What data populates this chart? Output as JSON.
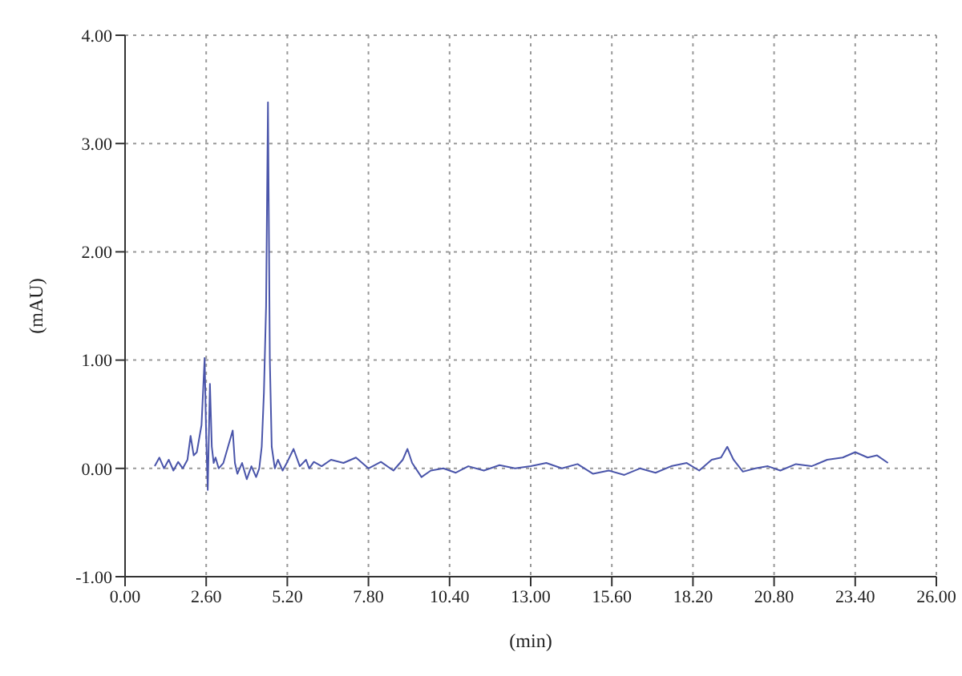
{
  "chart_data": {
    "type": "line",
    "xlabel": "(min)",
    "ylabel": "(mAU)",
    "xlim": [
      0,
      26
    ],
    "ylim": [
      -1,
      4
    ],
    "xticks": [
      {
        "value": 0,
        "label": "0.00"
      },
      {
        "value": 2.6,
        "label": "2.60"
      },
      {
        "value": 5.2,
        "label": "5.20"
      },
      {
        "value": 7.8,
        "label": "7.80"
      },
      {
        "value": 10.4,
        "label": "10.40"
      },
      {
        "value": 13,
        "label": "13.00"
      },
      {
        "value": 15.6,
        "label": "15.60"
      },
      {
        "value": 18.2,
        "label": "18.20"
      },
      {
        "value": 20.8,
        "label": "20.80"
      },
      {
        "value": 23.4,
        "label": "23.40"
      },
      {
        "value": 26,
        "label": "26.00"
      }
    ],
    "yticks": [
      {
        "value": -1,
        "label": "-1.00"
      },
      {
        "value": 0,
        "label": "0.00"
      },
      {
        "value": 1,
        "label": "1.00"
      },
      {
        "value": 2,
        "label": "2.00"
      },
      {
        "value": 3,
        "label": "3.00"
      },
      {
        "value": 4,
        "label": "4.00"
      }
    ],
    "grid": true,
    "marker": "none",
    "line_style": "solid",
    "series": [
      {
        "color": "#4a55aa",
        "x": [
          0.95,
          1.1,
          1.25,
          1.4,
          1.55,
          1.7,
          1.85,
          2.0,
          2.1,
          2.2,
          2.3,
          2.45,
          2.55,
          2.6,
          2.65,
          2.72,
          2.78,
          2.84,
          2.9,
          3.0,
          3.15,
          3.3,
          3.45,
          3.52,
          3.6,
          3.75,
          3.9,
          4.05,
          4.2,
          4.3,
          4.38,
          4.45,
          4.52,
          4.58,
          4.64,
          4.7,
          4.8,
          4.9,
          5.05,
          5.2,
          5.4,
          5.6,
          5.8,
          5.9,
          6.05,
          6.3,
          6.6,
          7.0,
          7.4,
          7.8,
          8.2,
          8.6,
          8.9,
          9.05,
          9.2,
          9.5,
          9.8,
          10.2,
          10.6,
          11.0,
          11.5,
          12.0,
          12.5,
          13.0,
          13.5,
          14.0,
          14.5,
          15.0,
          15.5,
          16.0,
          16.5,
          17.0,
          17.5,
          18.0,
          18.4,
          18.8,
          19.1,
          19.3,
          19.5,
          19.8,
          20.2,
          20.6,
          21.0,
          21.5,
          22.0,
          22.5,
          23.0,
          23.4,
          23.8,
          24.1,
          24.45
        ],
        "values": [
          0.02,
          0.1,
          0.0,
          0.08,
          -0.02,
          0.06,
          0.0,
          0.08,
          0.3,
          0.12,
          0.15,
          0.4,
          1.02,
          0.3,
          -0.2,
          0.78,
          0.2,
          0.05,
          0.1,
          0.0,
          0.05,
          0.2,
          0.35,
          0.05,
          -0.05,
          0.05,
          -0.1,
          0.02,
          -0.08,
          0.0,
          0.2,
          0.7,
          1.5,
          3.38,
          1.0,
          0.2,
          0.0,
          0.08,
          -0.02,
          0.06,
          0.18,
          0.02,
          0.08,
          0.0,
          0.06,
          0.02,
          0.08,
          0.05,
          0.1,
          0.0,
          0.06,
          -0.02,
          0.08,
          0.18,
          0.05,
          -0.08,
          -0.02,
          0.0,
          -0.04,
          0.02,
          -0.02,
          0.03,
          0.0,
          0.02,
          0.05,
          0.0,
          0.04,
          -0.05,
          -0.02,
          -0.06,
          0.0,
          -0.04,
          0.02,
          0.05,
          -0.02,
          0.08,
          0.1,
          0.2,
          0.08,
          -0.03,
          0.0,
          0.02,
          -0.02,
          0.04,
          0.02,
          0.08,
          0.1,
          0.15,
          0.1,
          0.12,
          0.05
        ]
      }
    ]
  }
}
